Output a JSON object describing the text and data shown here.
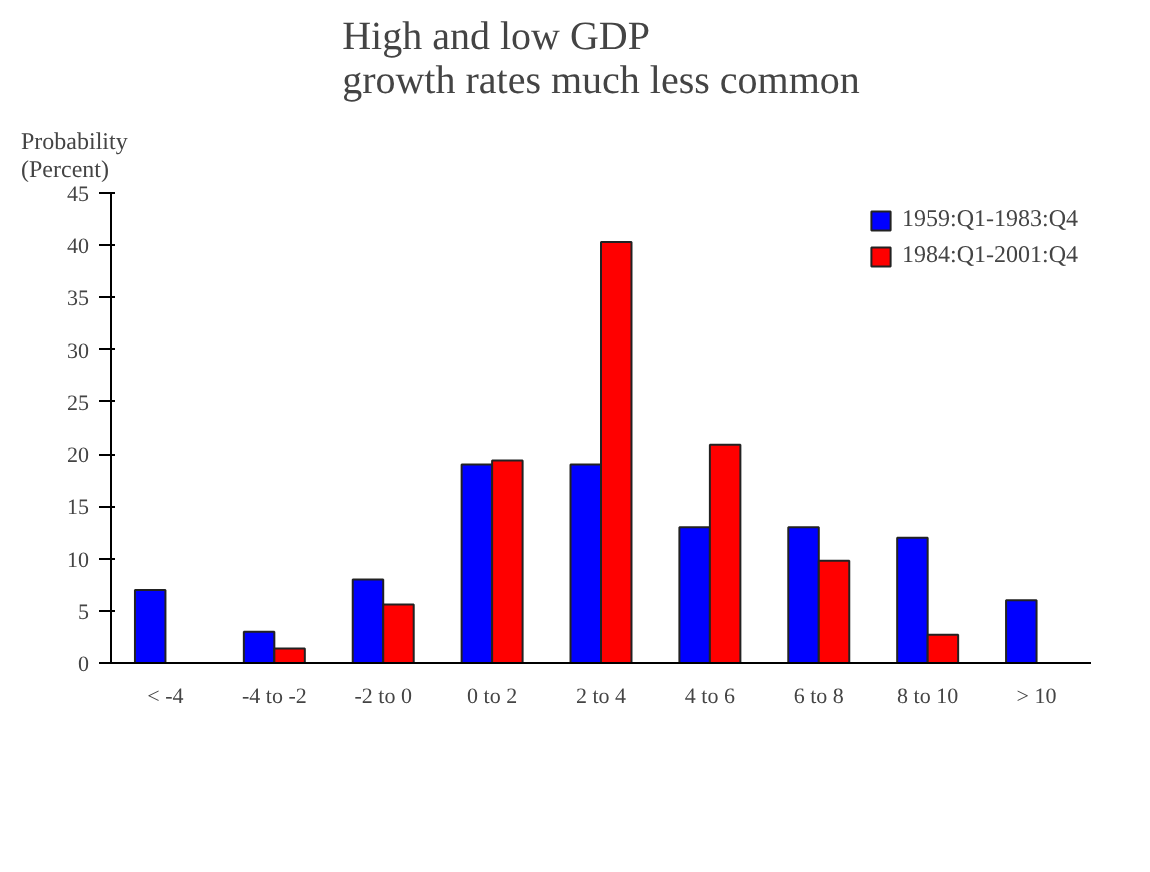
{
  "chart_data": {
    "type": "bar",
    "title": "High and low GDP\ngrowth rates much less common",
    "ylabel": "Probability\n(Percent)",
    "categories": [
      "< -4",
      "-4 to -2",
      "-2 to 0",
      "0 to 2",
      "2 to 4",
      "4 to 6",
      "6 to 8",
      "8 to 10",
      "> 10"
    ],
    "series": [
      {
        "name": "1959:Q1-1983:Q4",
        "color": "#0000ff",
        "values": [
          7,
          3,
          8,
          19,
          19,
          13,
          13,
          12,
          6
        ]
      },
      {
        "name": "1984:Q1-2001:Q4",
        "color": "#ff0000",
        "values": [
          null,
          1.4,
          5.6,
          19.4,
          40.3,
          20.9,
          9.8,
          2.7,
          null
        ]
      }
    ],
    "ylim": [
      0,
      45
    ],
    "yticks": [
      0,
      5,
      10,
      15,
      20,
      25,
      30,
      35,
      40,
      45
    ],
    "grid": false,
    "legend": "top right"
  }
}
